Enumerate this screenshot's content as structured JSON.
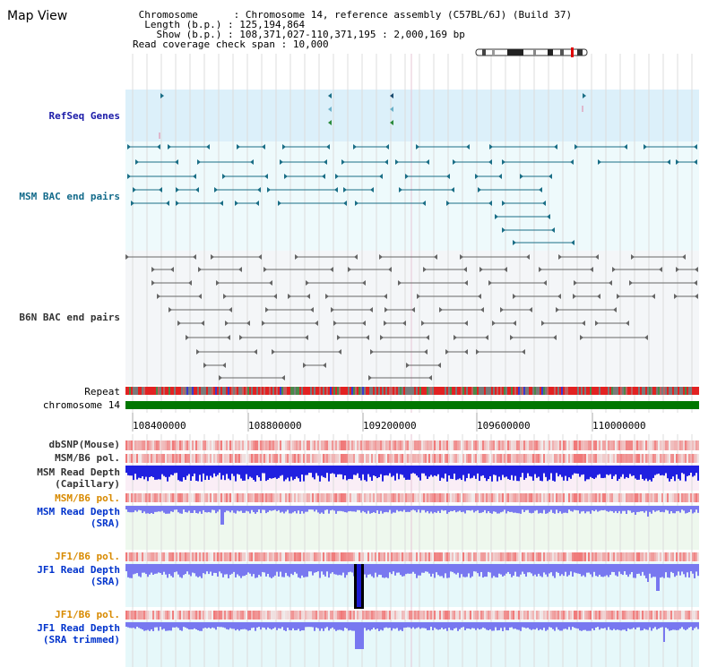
{
  "map_title": "Map View",
  "info": {
    "chromosome_key": "Chromosome",
    "chromosome_value": "Chromosome 14, reference assembly (C57BL/6J) (Build 37)",
    "length_key": "Length (b.p.)",
    "length_value": "125,194,864",
    "show_key": "Show (b.p.)",
    "show_value": "108,371,027-110,371,195 : 2,000,169 bp",
    "coverage_key": "Read coverage check span",
    "coverage_value": "10,000"
  },
  "tracks": {
    "refseq": "RefSeq Genes",
    "msm_bac": "MSM BAC end pairs",
    "b6n_bac": "B6N BAC end pairs",
    "repeat": "Repeat",
    "chromosome": "chromosome 14",
    "dbsnp": "dbSNP(Mouse)",
    "msm_b6_pol_1": "MSM/B6 pol.",
    "msm_read_depth_cap_1": "MSM Read Depth",
    "msm_read_depth_cap_2": "(Capillary)",
    "msm_b6_pol_2": "MSM/B6 pol.",
    "msm_read_depth_sra_1": "MSM Read Depth",
    "msm_read_depth_sra_2": "(SRA)",
    "jf1_b6_pol_1": "JF1/B6 pol.",
    "jf1_read_depth_sra_1": "JF1 Read Depth",
    "jf1_read_depth_sra_2": "(SRA)",
    "jf1_b6_pol_2": "JF1/B6 pol.",
    "jf1_read_depth_trim_1": "JF1 Read Depth",
    "jf1_read_depth_trim_2": "(SRA trimmed)"
  },
  "axis": {
    "ticks": [
      "108400000",
      "108800000",
      "109200000",
      "109600000",
      "110000000"
    ]
  },
  "colors": {
    "refseq_bg": "#dcf0fa",
    "bac_bg": "#eefafc",
    "b6n_bg": "#f4f6f8",
    "msm_feature": "#1a6e86",
    "b6n_feature": "#666666",
    "chromosome_bar": "#007700",
    "depth_blue": "#2020e0",
    "depth_light": "#7878f0"
  }
}
